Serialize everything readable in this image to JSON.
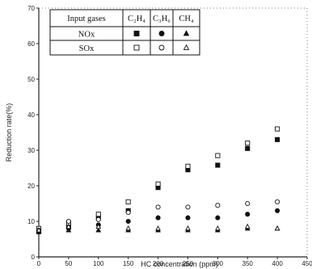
{
  "chart_data": {
    "type": "scatter",
    "xlabel": "HC concentration (ppm)",
    "ylabel": "Reduction rate(%)",
    "xlim": [
      0,
      450
    ],
    "ylim": [
      0,
      70
    ],
    "x_ticks": [
      "0",
      "50",
      "100",
      "150",
      "200",
      "250",
      "300",
      "350",
      "400",
      "450"
    ],
    "y_ticks": [
      "0",
      "10",
      "20",
      "30",
      "40",
      "50",
      "60",
      "70"
    ],
    "legend": {
      "placement": "top-left",
      "header": [
        "Input gases",
        "C₂H₄",
        "C₃H₆",
        "CH₄"
      ],
      "rows": [
        {
          "label": "NOx",
          "symbols": [
            "filled-square",
            "filled-circle",
            "filled-triangle"
          ]
        },
        {
          "label": "SOx",
          "symbols": [
            "open-square",
            "open-circle",
            "open-triangle"
          ]
        }
      ]
    },
    "series": [
      {
        "name": "NOx C₂H₄",
        "marker": "filled-square",
        "x": [
          0,
          50,
          100,
          150,
          200,
          250,
          300,
          350,
          400
        ],
        "y": [
          7.2,
          8.5,
          11,
          13,
          19.5,
          24.5,
          25.8,
          30.5,
          33
        ]
      },
      {
        "name": "SOx C₂H₄",
        "marker": "open-square",
        "x": [
          0,
          50,
          100,
          150,
          200,
          250,
          300,
          350,
          400
        ],
        "y": [
          8,
          9.5,
          12,
          15.5,
          20.5,
          25.5,
          28.5,
          32,
          36
        ]
      },
      {
        "name": "NOx C₃H₆",
        "marker": "filled-circle",
        "x": [
          0,
          50,
          100,
          150,
          200,
          250,
          300,
          350,
          400
        ],
        "y": [
          7,
          8,
          9,
          10,
          11,
          11,
          11,
          12,
          13
        ]
      },
      {
        "name": "SOx C₃H₆",
        "marker": "open-circle",
        "x": [
          0,
          50,
          100,
          150,
          200,
          250,
          300,
          350,
          400
        ],
        "y": [
          7.5,
          10,
          10.5,
          12.5,
          14,
          14,
          14.5,
          15,
          15.5
        ]
      },
      {
        "name": "NOx CH₄",
        "marker": "filled-triangle",
        "x": [
          0,
          50,
          100,
          150,
          200,
          250,
          300,
          350,
          400
        ],
        "y": [
          7,
          7.5,
          7.5,
          7.5,
          7.5,
          7.5,
          7.5,
          8,
          8
        ]
      },
      {
        "name": "SOx CH₄",
        "marker": "open-triangle",
        "x": [
          0,
          50,
          100,
          150,
          200,
          250,
          300,
          350,
          400
        ],
        "y": [
          7.5,
          8.5,
          8.5,
          8,
          8,
          8,
          8,
          8.5,
          8
        ]
      }
    ]
  }
}
